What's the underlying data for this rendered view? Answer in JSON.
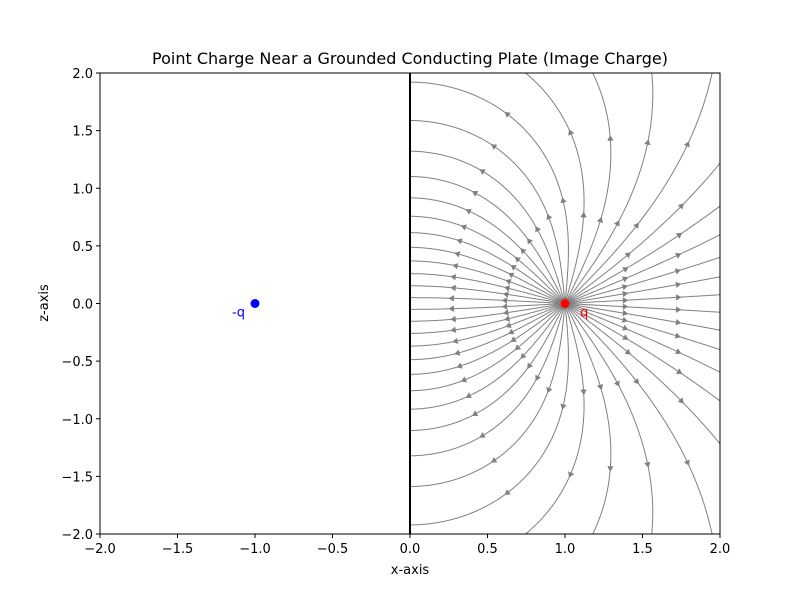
{
  "chart_data": {
    "type": "streamplot",
    "title": "Point Charge Near a Grounded Conducting Plate (Image Charge)",
    "xlabel": "x-axis",
    "ylabel": "z-axis",
    "xlim": [
      -2.0,
      2.0
    ],
    "ylim": [
      -2.0,
      2.0
    ],
    "xticks": [
      -2.0,
      -1.5,
      -1.0,
      -0.5,
      0.0,
      0.5,
      1.0,
      1.5,
      2.0
    ],
    "yticks": [
      -2.0,
      -1.5,
      -1.0,
      -0.5,
      0.0,
      0.5,
      1.0,
      1.5,
      2.0
    ],
    "xtick_labels": [
      "−2.0",
      "−1.5",
      "−1.0",
      "−0.5",
      "0.0",
      "0.5",
      "1.0",
      "1.5",
      "2.0"
    ],
    "ytick_labels": [
      "−2.0",
      "−1.5",
      "−1.0",
      "−0.5",
      "0.0",
      "0.5",
      "1.0",
      "1.5",
      "2.0"
    ],
    "grid": false,
    "plate": {
      "x": 0.0,
      "color": "#000000"
    },
    "field_line_color": "#808080",
    "charges": [
      {
        "label": "q",
        "x": 1.0,
        "z": 0.0,
        "color": "#ff0000"
      },
      {
        "label": "-q",
        "x": -1.0,
        "z": 0.0,
        "color": "#0000ff"
      }
    ]
  }
}
